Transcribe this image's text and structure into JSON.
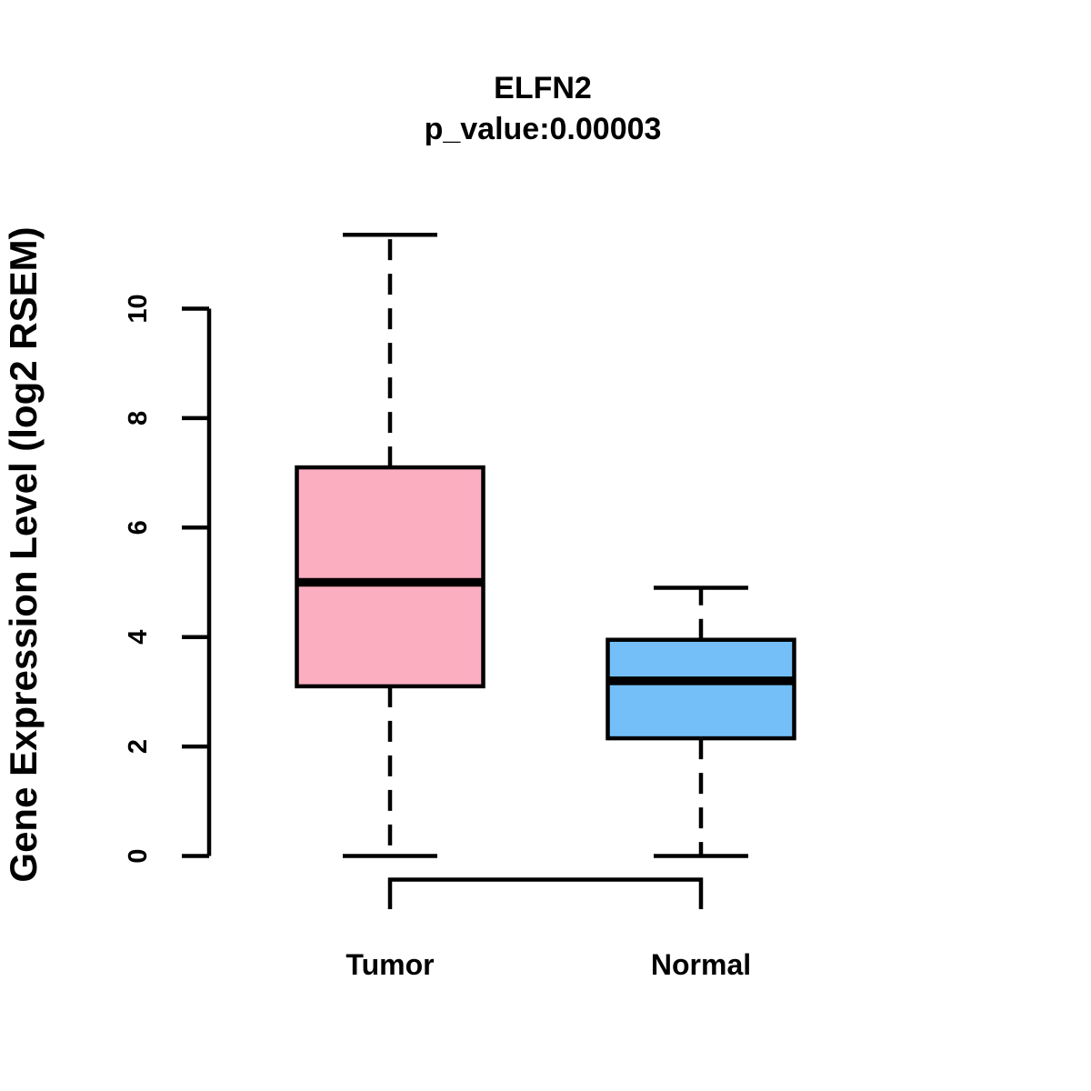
{
  "chart_data": {
    "type": "boxplot",
    "title": "ELFN2",
    "subtitle": "p_value:0.00003",
    "ylabel": "Gene Expression Level (log2 RSEM)",
    "xlabel": "",
    "ylim": [
      0,
      11.4
    ],
    "yticks": [
      0,
      2,
      4,
      6,
      8,
      10
    ],
    "grid": false,
    "legend": "none",
    "categories": [
      "Tumor",
      "Normal"
    ],
    "series": [
      {
        "name": "Tumor",
        "lower_whisker": 0,
        "q1": 3.1,
        "median": 5.0,
        "q3": 7.1,
        "upper_whisker": 11.35,
        "fill_color": "#FCAEC1"
      },
      {
        "name": "Normal",
        "lower_whisker": 0,
        "q1": 2.15,
        "median": 3.2,
        "q3": 3.95,
        "upper_whisker": 4.9,
        "fill_color": "#74BFF8"
      }
    ],
    "colors": {
      "tumor_fill": "#FCAEC1",
      "normal_fill": "#74BFF8",
      "line": "#000000",
      "background": "#ffffff"
    }
  }
}
